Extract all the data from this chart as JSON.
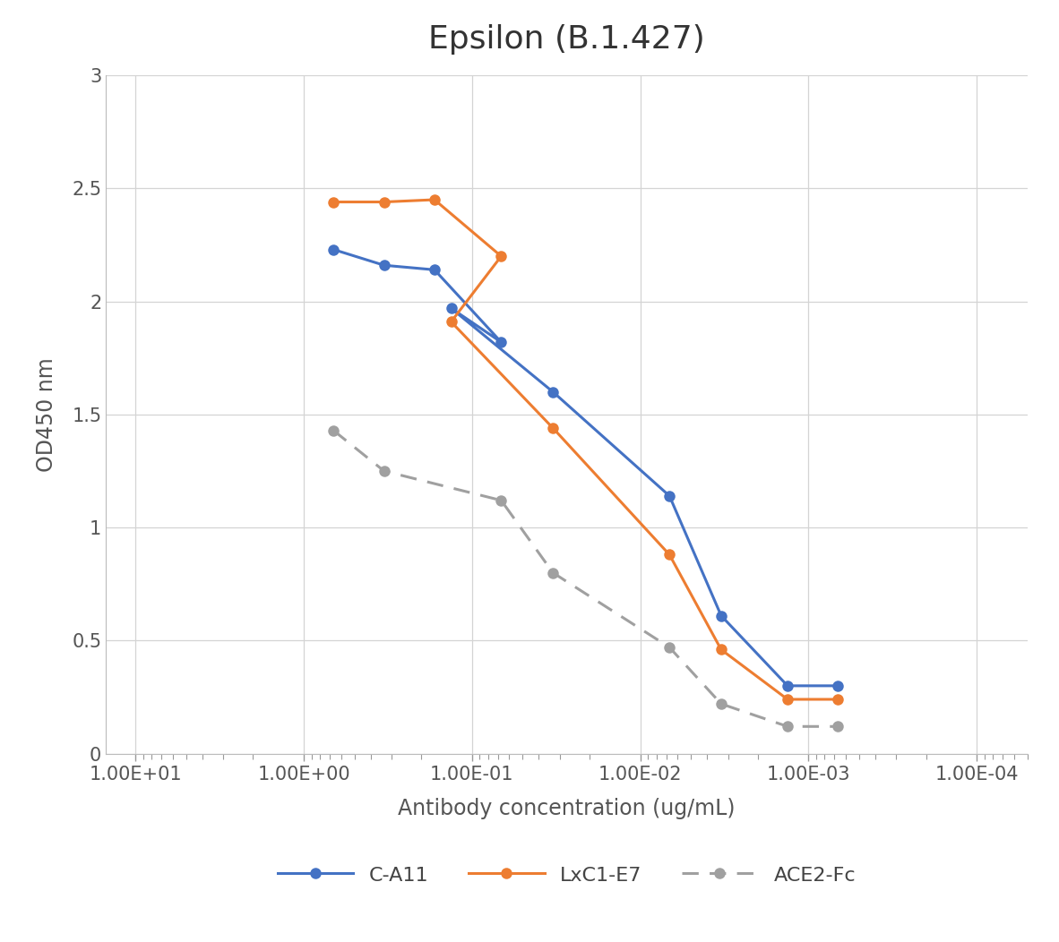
{
  "title": "Epsilon (B.1.427)",
  "xlabel": "Antibody concentration (ug/mL)",
  "ylabel": "OD450 nm",
  "CA11_x": [
    0.667,
    0.333,
    0.167,
    0.067,
    0.133,
    0.033,
    0.0067,
    0.0033,
    0.00133,
    0.000667
  ],
  "CA11_y": [
    2.23,
    2.16,
    2.14,
    1.82,
    1.97,
    1.6,
    1.14,
    0.61,
    0.3,
    0.3
  ],
  "LxC1E7_x": [
    0.667,
    0.333,
    0.167,
    0.067,
    0.133,
    0.033,
    0.0067,
    0.0033,
    0.00133,
    0.000667
  ],
  "LxC1E7_y": [
    2.44,
    2.44,
    2.45,
    2.2,
    1.91,
    1.44,
    0.88,
    0.46,
    0.24,
    0.24
  ],
  "ACE2Fc_x": [
    0.667,
    0.333,
    0.067,
    0.033,
    0.0067,
    0.0033,
    0.00133,
    0.000667
  ],
  "ACE2Fc_y": [
    1.43,
    1.25,
    1.12,
    0.8,
    0.47,
    0.22,
    0.12,
    0.12
  ],
  "CA11_color": "#4472c4",
  "LxC1E7_color": "#ed7d31",
  "ACE2Fc_color": "#a0a0a0",
  "background_color": "#ffffff",
  "grid_color": "#d4d4d4",
  "ylim": [
    0,
    3.0
  ],
  "yticks": [
    0,
    0.5,
    1.0,
    1.5,
    2.0,
    2.5,
    3
  ],
  "ytick_labels": [
    "0",
    "0.5",
    "1",
    "1.5",
    "2",
    "2.5",
    "3"
  ],
  "xtick_positions": [
    10.0,
    1.0,
    0.1,
    0.01,
    0.001,
    0.0001
  ],
  "xtick_labels": [
    "1.00E+01",
    "1.00E+00",
    "1.00E-01",
    "1.00E-02",
    "1.00E-03",
    "1.00E-04"
  ],
  "xlim_left": 15.0,
  "xlim_right": 5e-05,
  "title_fontsize": 26,
  "axis_label_fontsize": 17,
  "tick_fontsize": 15,
  "legend_fontsize": 16
}
